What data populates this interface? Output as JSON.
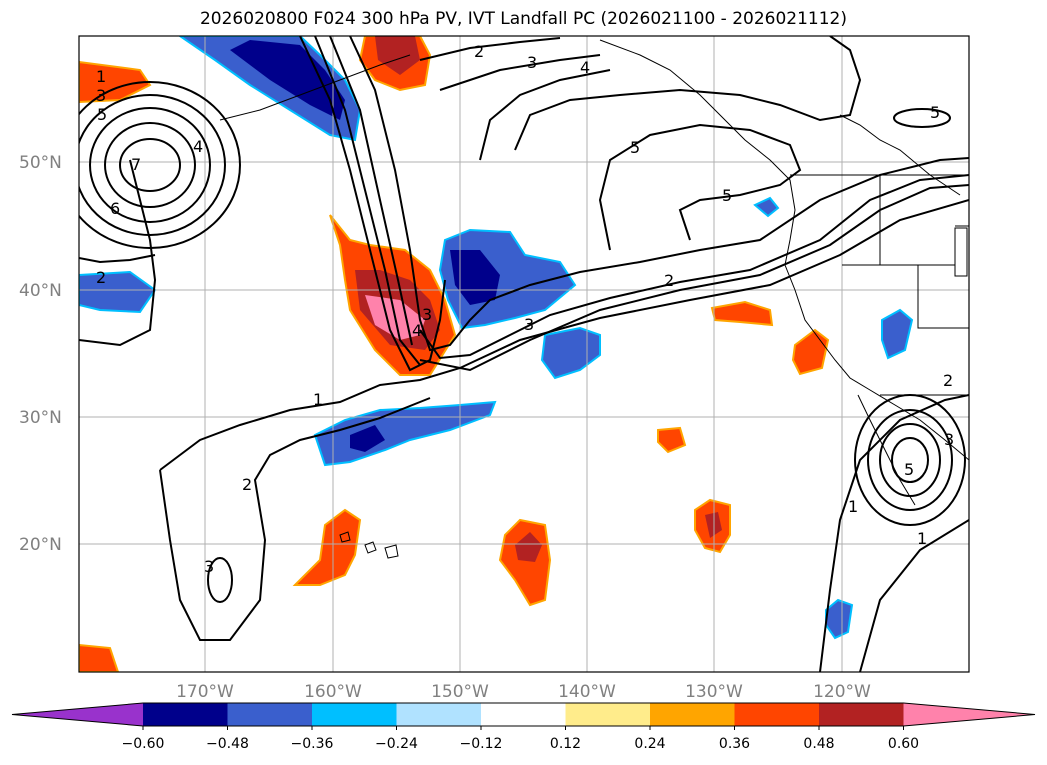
{
  "title": "2026020800 F024 300 hPa PV, IVT Landfall PC (2026021100 - 2026021112)",
  "lat_labels": [
    "50°N",
    "40°N",
    "30°N",
    "20°N"
  ],
  "lon_labels": [
    "170°W",
    "160°W",
    "150°W",
    "140°W",
    "130°W",
    "120°W"
  ],
  "contour_labels": [
    "1",
    "3",
    "5",
    "7",
    "6",
    "4",
    "2",
    "2",
    "3",
    "4",
    "5",
    "5",
    "5",
    "2",
    "3",
    "4",
    "3",
    "1",
    "2",
    "3",
    "2",
    "1",
    "1",
    "3",
    "5"
  ],
  "colorbar": {
    "ticks": [
      "−0.60",
      "−0.48",
      "−0.36",
      "−0.24",
      "−0.12",
      "0.12",
      "0.24",
      "0.36",
      "0.48",
      "0.60"
    ],
    "colors": [
      "#9932cc",
      "#00008b",
      "#3a5fcd",
      "#00bfff",
      "#b0e2ff",
      "#ffffff",
      "#ffec8b",
      "#ffa500",
      "#ff4500",
      "#b22222",
      "#ff82ab"
    ]
  }
}
